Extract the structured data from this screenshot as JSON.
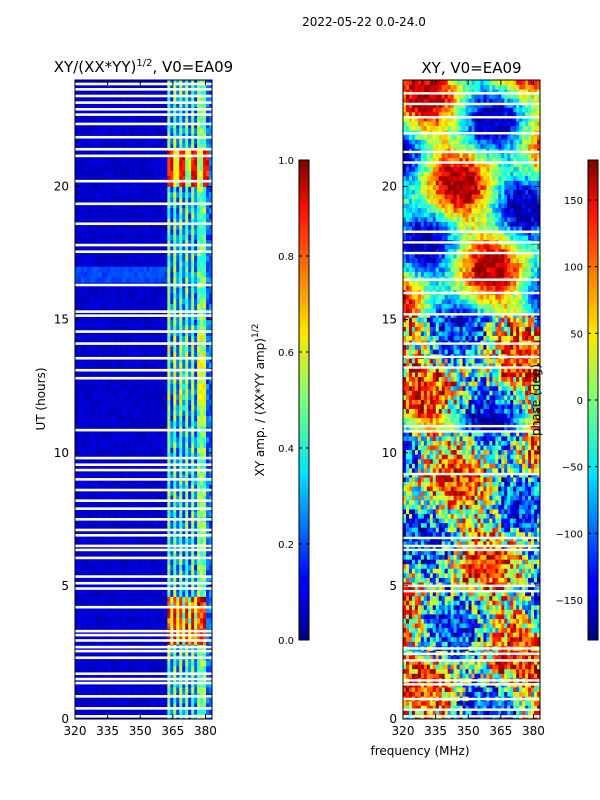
{
  "figure": {
    "suptitle": "2022-05-22 0.0-24.0",
    "xlabel": "frequency (MHz)"
  },
  "chart_data": [
    {
      "type": "heatmap",
      "id": "amp",
      "title_prefix": "XY/(XX*YY)",
      "title_sup": "1/2",
      "title_suffix": ", V0=EA09",
      "xlabel": "frequency (MHz)",
      "ylabel": "UT (hours)",
      "xlim": [
        320,
        383
      ],
      "ylim": [
        0,
        24
      ],
      "xticks": [
        320,
        335,
        350,
        365,
        380
      ],
      "yticks": [
        0,
        5,
        10,
        15,
        20
      ],
      "colorbar": {
        "label_prefix": "XY amp. / (XX*YY amp)",
        "label_sup": "1/2",
        "range": [
          0.0,
          1.0
        ],
        "ticks": [
          0.0,
          0.2,
          0.4,
          0.6,
          0.8,
          1.0
        ],
        "tick_labels": [
          "0.0",
          "0.2",
          "0.4",
          "0.6",
          "0.8",
          "1.0"
        ],
        "colormap": "jet"
      },
      "gaps_hours": [
        0.1,
        0.4,
        0.85,
        1.35,
        1.5,
        1.7,
        2.3,
        2.55,
        2.7,
        2.95,
        3.15,
        3.3,
        4.2,
        4.9,
        5.1,
        5.35,
        6.05,
        6.35,
        6.5,
        6.9,
        7.1,
        7.5,
        7.9,
        8.2,
        8.6,
        9.0,
        9.35,
        9.55,
        9.8,
        10.85,
        12.8,
        13.1,
        13.55,
        14.1,
        14.55,
        15.15,
        15.3,
        16.3,
        17.55,
        17.8,
        18.6,
        19.35,
        20.2,
        21.15,
        21.4,
        21.85,
        22.35,
        22.7,
        22.9,
        23.15,
        23.4,
        23.65,
        23.85
      ],
      "bright_channels_mhz": [
        363,
        366,
        369,
        371,
        374,
        377,
        379
      ],
      "hot_block": {
        "time_hours": [
          20.0,
          21.3
        ],
        "freq_mhz": [
          362,
          381
        ],
        "level": 0.95
      }
    },
    {
      "type": "heatmap",
      "id": "phase",
      "title": "XY, V0=EA09",
      "xlabel": "frequency (MHz)",
      "ylabel": "",
      "xlim": [
        320,
        383
      ],
      "ylim": [
        0,
        24
      ],
      "xticks": [
        320,
        335,
        350,
        365,
        380
      ],
      "yticks": [
        0,
        5,
        10,
        15,
        20
      ],
      "colorbar": {
        "label": "phase (deg)",
        "range": [
          -180,
          180
        ],
        "ticks": [
          -150,
          -100,
          -50,
          0,
          50,
          100,
          150
        ],
        "tick_labels": [
          "−150",
          "−100",
          "−50",
          "0",
          "50",
          "100",
          "150"
        ],
        "colormap": "jet"
      },
      "gaps_hours": [
        0.1,
        0.35,
        0.75,
        1.3,
        1.45,
        2.2,
        2.45,
        2.65,
        4.8,
        5.0,
        6.35,
        6.5,
        6.8,
        9.2,
        10.8,
        11.0,
        13.2,
        13.6,
        14.1,
        15.2,
        16.0,
        16.5,
        17.5,
        17.9,
        18.3,
        20.9,
        21.3,
        22.0,
        22.6,
        23.1,
        23.5
      ]
    }
  ]
}
